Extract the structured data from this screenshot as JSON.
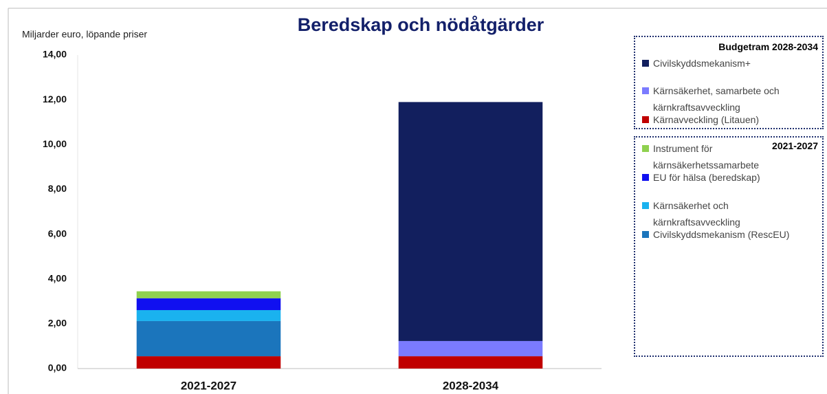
{
  "chart_data": {
    "type": "stacked_bar",
    "title": "Beredskap och nödåtgärder",
    "y_label": "Miljarder euro, löpande priser",
    "categories": [
      "2021-2027",
      "2028-2034"
    ],
    "ylim": [
      0,
      14
    ],
    "yticks": [
      {
        "value": 0,
        "label": "0,00"
      },
      {
        "value": 2,
        "label": "2,00"
      },
      {
        "value": 4,
        "label": "4,00"
      },
      {
        "value": 6,
        "label": "6,00"
      },
      {
        "value": 8,
        "label": "8,00"
      },
      {
        "value": 10,
        "label": "10,00"
      },
      {
        "value": 12,
        "label": "12,00"
      },
      {
        "value": 14,
        "label": "14,00"
      }
    ],
    "grid": false,
    "series": [
      {
        "name": "Kärnavveckling (Litauen)",
        "color": "#c00000",
        "values": [
          0.55,
          0.55
        ]
      },
      {
        "name": "Civilskyddsmekanism (RescEU)",
        "color": "#1b75bc",
        "values": [
          1.57,
          null
        ]
      },
      {
        "name": "Kärnsäkerhet och kärnkraftsavveckling",
        "color": "#1ab2ef",
        "values": [
          0.49,
          null
        ]
      },
      {
        "name": "EU för hälsa (beredskap)",
        "color": "#1010f0",
        "values": [
          0.53,
          null
        ]
      },
      {
        "name": "Instrument för kärnsäkerhetssamarbete",
        "color": "#8fd14f",
        "values": [
          0.31,
          null
        ]
      },
      {
        "name": "Kärnsäkerhet, samarbete och kärnkraftsavveckling",
        "color": "#7b7bff",
        "values": [
          null,
          0.68
        ]
      },
      {
        "name": "Civilskyddsmekanism+",
        "color": "#121f5e",
        "values": [
          null,
          10.67
        ]
      }
    ],
    "legend_groups": [
      {
        "title": "Budgetram 2028-2034",
        "series": [
          6,
          5,
          0
        ]
      },
      {
        "title": "2021-2027",
        "series": [
          4,
          3,
          2,
          1
        ]
      }
    ]
  }
}
